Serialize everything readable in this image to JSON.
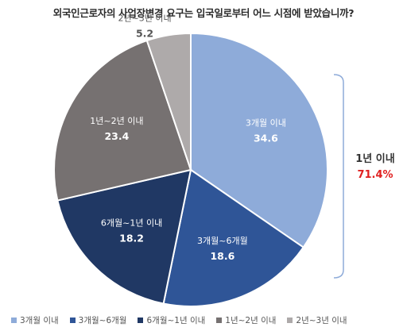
{
  "title": "외국인근로자의 사업장변경 요구는 입국일로부터 어느 시점에 받았습니까?",
  "chart_data": {
    "type": "pie",
    "slices": [
      {
        "name": "3개월 이내",
        "value": 34.6,
        "color": "#8eabd9"
      },
      {
        "name": "3개월~6개월",
        "value": 18.6,
        "color": "#2f5597"
      },
      {
        "name": "6개월~1년 이내",
        "value": 18.2,
        "color": "#203864"
      },
      {
        "name": "1년~2년 이내",
        "value": 23.4,
        "color": "#767171"
      },
      {
        "name": "2년~3년 이내",
        "value": 5.2,
        "color": "#aeaaaa"
      }
    ],
    "annotation": {
      "label": "1년 이내",
      "value": "71.4%",
      "value_color": "#e02020",
      "bracket_color": "#8eabd9"
    },
    "legend_position": "bottom"
  }
}
